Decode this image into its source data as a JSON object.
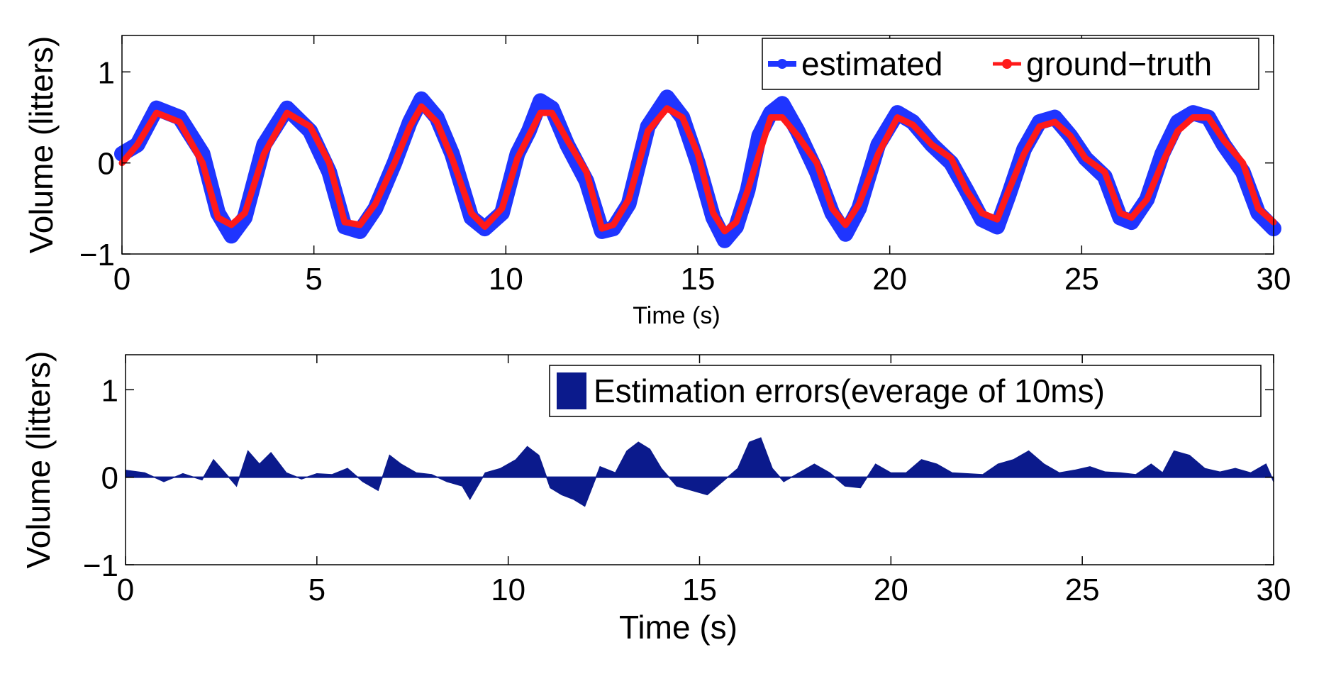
{
  "chart_data": [
    {
      "type": "line",
      "title": "",
      "xlabel": "Time (s)",
      "ylabel": "Volume (litters)",
      "xlim": [
        0,
        30
      ],
      "ylim": [
        -1,
        1.4
      ],
      "xticks": [
        0,
        5,
        10,
        15,
        20,
        25,
        30
      ],
      "yticks": [
        -1,
        0,
        1
      ],
      "grid": false,
      "legend_position": "top-right",
      "series": [
        {
          "name": "estimated",
          "color": "#1f35ff",
          "x": [
            0,
            0.4,
            0.9,
            1.5,
            2.1,
            2.5,
            2.85,
            3.2,
            3.7,
            4.3,
            4.9,
            5.4,
            5.8,
            6.2,
            6.6,
            7.1,
            7.5,
            7.8,
            8.2,
            8.6,
            9.1,
            9.45,
            9.9,
            10.3,
            10.6,
            10.9,
            11.2,
            11.6,
            12.1,
            12.5,
            12.8,
            13.2,
            13.7,
            14.2,
            14.6,
            15.0,
            15.4,
            15.7,
            16.0,
            16.3,
            16.6,
            16.9,
            17.2,
            17.6,
            18.1,
            18.5,
            18.85,
            19.2,
            19.7,
            20.2,
            20.6,
            21.1,
            21.6,
            22.0,
            22.4,
            22.8,
            23.1,
            23.5,
            23.9,
            24.3,
            24.7,
            25.1,
            25.6,
            26.0,
            26.3,
            26.7,
            27.1,
            27.5,
            27.9,
            28.3,
            28.7,
            29.2,
            29.6,
            30.0
          ],
          "values": [
            0.1,
            0.2,
            0.6,
            0.5,
            0.1,
            -0.55,
            -0.8,
            -0.6,
            0.2,
            0.6,
            0.35,
            -0.1,
            -0.7,
            -0.75,
            -0.5,
            0.0,
            0.45,
            0.7,
            0.5,
            0.1,
            -0.6,
            -0.72,
            -0.55,
            0.1,
            0.35,
            0.68,
            0.6,
            0.2,
            -0.2,
            -0.75,
            -0.72,
            -0.45,
            0.4,
            0.72,
            0.5,
            0.0,
            -0.6,
            -0.85,
            -0.7,
            -0.3,
            0.3,
            0.55,
            0.65,
            0.35,
            -0.1,
            -0.55,
            -0.78,
            -0.5,
            0.2,
            0.55,
            0.45,
            0.2,
            0.0,
            -0.3,
            -0.62,
            -0.7,
            -0.35,
            0.15,
            0.45,
            0.5,
            0.3,
            0.05,
            -0.15,
            -0.6,
            -0.65,
            -0.4,
            0.1,
            0.45,
            0.55,
            0.5,
            0.2,
            -0.1,
            -0.55,
            -0.72
          ]
        },
        {
          "name": "ground−truth",
          "color": "#ff1a1a",
          "x": [
            0,
            0.4,
            0.9,
            1.5,
            2.1,
            2.5,
            2.85,
            3.2,
            3.7,
            4.3,
            4.9,
            5.4,
            5.8,
            6.2,
            6.6,
            7.1,
            7.5,
            7.8,
            8.2,
            8.6,
            9.1,
            9.45,
            9.9,
            10.3,
            10.6,
            10.9,
            11.2,
            11.6,
            12.1,
            12.5,
            12.8,
            13.2,
            13.7,
            14.2,
            14.6,
            15.0,
            15.4,
            15.7,
            16.0,
            16.3,
            16.6,
            16.9,
            17.2,
            17.6,
            18.1,
            18.5,
            18.85,
            19.2,
            19.7,
            20.2,
            20.6,
            21.1,
            21.6,
            22.0,
            22.4,
            22.8,
            23.1,
            23.5,
            23.9,
            24.3,
            24.7,
            25.1,
            25.6,
            26.0,
            26.3,
            26.7,
            27.1,
            27.5,
            27.9,
            28.3,
            28.7,
            29.2,
            29.6,
            30.0
          ],
          "values": [
            0.0,
            0.2,
            0.55,
            0.45,
            0.0,
            -0.6,
            -0.68,
            -0.55,
            0.1,
            0.55,
            0.4,
            0.0,
            -0.65,
            -0.68,
            -0.45,
            0.0,
            0.4,
            0.62,
            0.45,
            0.05,
            -0.55,
            -0.7,
            -0.5,
            0.05,
            0.3,
            0.55,
            0.55,
            0.25,
            -0.1,
            -0.72,
            -0.68,
            -0.4,
            0.35,
            0.6,
            0.5,
            0.1,
            -0.55,
            -0.75,
            -0.65,
            -0.3,
            0.1,
            0.5,
            0.5,
            0.3,
            0.0,
            -0.5,
            -0.68,
            -0.45,
            0.1,
            0.5,
            0.42,
            0.2,
            0.05,
            -0.3,
            -0.55,
            -0.62,
            -0.3,
            0.1,
            0.4,
            0.45,
            0.3,
            0.05,
            -0.1,
            -0.55,
            -0.6,
            -0.4,
            0.0,
            0.35,
            0.5,
            0.5,
            0.25,
            0.0,
            -0.5,
            -0.65
          ]
        }
      ]
    },
    {
      "type": "area",
      "title": "",
      "xlabel": "Time (s)",
      "ylabel": "Volume (litters)",
      "xlim": [
        0,
        30
      ],
      "ylim": [
        -1,
        1.4
      ],
      "xticks": [
        0,
        5,
        10,
        15,
        20,
        25,
        30
      ],
      "yticks": [
        -1,
        0,
        1
      ],
      "grid": false,
      "legend_position": "top-right",
      "series": [
        {
          "name": "Estimation errors(everage of 10ms)",
          "color": "#0b1a8c",
          "x": [
            0,
            0.5,
            1.0,
            1.5,
            2.0,
            2.3,
            2.6,
            2.9,
            3.2,
            3.5,
            3.8,
            4.2,
            4.6,
            5.0,
            5.4,
            5.8,
            6.2,
            6.6,
            6.9,
            7.2,
            7.6,
            8.0,
            8.4,
            8.8,
            9.0,
            9.4,
            9.8,
            10.2,
            10.5,
            10.8,
            11.1,
            11.4,
            11.7,
            12.0,
            12.4,
            12.8,
            13.1,
            13.4,
            13.7,
            14.0,
            14.4,
            14.8,
            15.2,
            15.6,
            16.0,
            16.3,
            16.6,
            16.9,
            17.2,
            17.6,
            18.0,
            18.4,
            18.8,
            19.2,
            19.6,
            20.0,
            20.4,
            20.8,
            21.2,
            21.6,
            22.0,
            22.4,
            22.8,
            23.2,
            23.6,
            24.0,
            24.4,
            24.8,
            25.2,
            25.6,
            26.0,
            26.4,
            26.8,
            27.1,
            27.4,
            27.8,
            28.2,
            28.6,
            29.0,
            29.4,
            29.8,
            30.0
          ],
          "values": [
            0.08,
            0.05,
            -0.05,
            0.04,
            -0.03,
            0.2,
            0.05,
            -0.1,
            0.3,
            0.15,
            0.28,
            0.05,
            -0.02,
            0.04,
            0.03,
            0.1,
            -0.05,
            -0.15,
            0.25,
            0.15,
            0.05,
            0.03,
            -0.05,
            -0.1,
            -0.25,
            0.05,
            0.1,
            0.2,
            0.35,
            0.25,
            -0.12,
            -0.2,
            -0.25,
            -0.33,
            0.12,
            0.05,
            0.3,
            0.4,
            0.32,
            0.1,
            -0.1,
            -0.15,
            -0.2,
            -0.05,
            0.1,
            0.4,
            0.45,
            0.1,
            -0.05,
            0.05,
            0.15,
            0.05,
            -0.1,
            -0.12,
            0.15,
            0.05,
            0.05,
            0.2,
            0.15,
            0.05,
            0.04,
            0.03,
            0.15,
            0.2,
            0.3,
            0.15,
            0.05,
            0.08,
            0.12,
            0.06,
            0.05,
            0.03,
            0.15,
            0.05,
            0.3,
            0.25,
            0.1,
            0.06,
            0.1,
            0.05,
            0.15,
            -0.05
          ]
        }
      ]
    }
  ]
}
